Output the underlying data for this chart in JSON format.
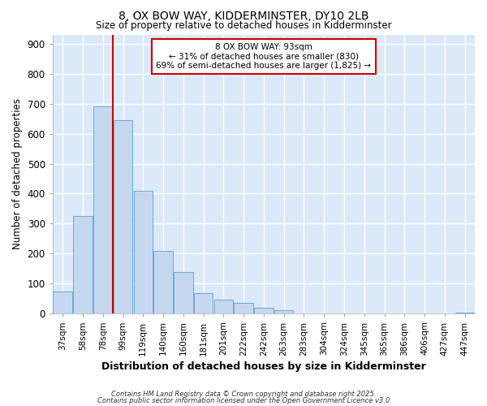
{
  "title1": "8, OX BOW WAY, KIDDERMINSTER, DY10 2LB",
  "title2": "Size of property relative to detached houses in Kidderminster",
  "xlabel": "Distribution of detached houses by size in Kidderminster",
  "ylabel": "Number of detached properties",
  "categories": [
    "37sqm",
    "58sqm",
    "78sqm",
    "99sqm",
    "119sqm",
    "140sqm",
    "160sqm",
    "181sqm",
    "201sqm",
    "222sqm",
    "242sqm",
    "263sqm",
    "283sqm",
    "304sqm",
    "324sqm",
    "345sqm",
    "365sqm",
    "386sqm",
    "406sqm",
    "427sqm",
    "447sqm"
  ],
  "values": [
    75,
    325,
    690,
    645,
    410,
    210,
    140,
    70,
    46,
    35,
    20,
    12,
    0,
    0,
    0,
    0,
    0,
    0,
    0,
    0,
    5
  ],
  "bar_color": "#c5d8f0",
  "bar_edge_color": "#6aaad4",
  "plot_bg_color": "#dce9f8",
  "fig_bg_color": "#ffffff",
  "grid_color": "#ffffff",
  "vline_color": "#cc0000",
  "vline_x_index": 3,
  "annotation_text": "8 OX BOW WAY: 93sqm\n← 31% of detached houses are smaller (830)\n69% of semi-detached houses are larger (1,825) →",
  "annotation_box_color": "#cc0000",
  "annotation_face_color": "#ffffff",
  "ylim": [
    0,
    930
  ],
  "yticks": [
    0,
    100,
    200,
    300,
    400,
    500,
    600,
    700,
    800,
    900
  ],
  "footnote1": "Contains HM Land Registry data © Crown copyright and database right 2025.",
  "footnote2": "Contains public sector information licensed under the Open Government Licence v3.0"
}
